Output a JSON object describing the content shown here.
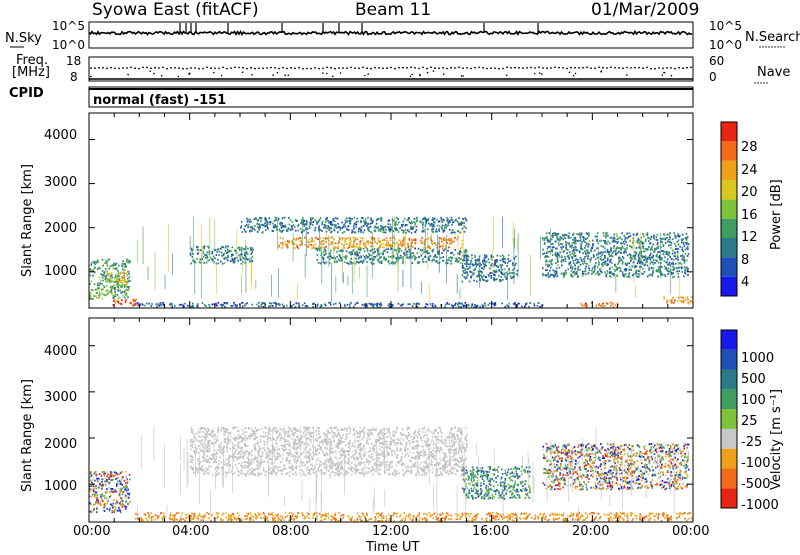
{
  "header": {
    "station": "Syowa East (fitACF)",
    "beam": "Beam 11",
    "date": "01/Mar/2009"
  },
  "top_panels": {
    "nsky_label": "N.Sky",
    "nsky_ticks": [
      "10^5",
      "10^0"
    ],
    "nsearch_label": "N.Search",
    "nsearch_ticks": [
      "10^5",
      "10^0"
    ],
    "freq_label": "Freq.",
    "freq_unit": "[MHz]",
    "freq_ticks": [
      "18",
      "8"
    ],
    "nave_label": "Nave",
    "nave_ticks": [
      "60",
      "0"
    ],
    "cpid_label": "CPID",
    "cpid_value": "normal (fast) -151"
  },
  "chart_data": [
    {
      "type": "heatmap",
      "name": "power",
      "ylabel": "Slant Range [km]",
      "xlabel": "Time UT",
      "x_ticks": [
        "00:00",
        "04:00",
        "08:00",
        "12:00",
        "16:00",
        "20:00",
        "00:00"
      ],
      "xlim": [
        0,
        24
      ],
      "y_ticks": [
        1000,
        2000,
        3000,
        4000
      ],
      "ylim": [
        180,
        4600
      ],
      "colorbar": {
        "label": "Power [dB]",
        "ticks": [
          4,
          8,
          12,
          16,
          20,
          24,
          28
        ],
        "range": [
          0,
          30
        ],
        "colors": [
          "#1818e8",
          "#1f50b8",
          "#2a7a88",
          "#3e9e60",
          "#7fc23c",
          "#d8c81e",
          "#f0a018",
          "#f06a18",
          "#e82414"
        ]
      },
      "regions": [
        {
          "t0": 0.0,
          "t1": 1.6,
          "r0": 400,
          "r1": 1300,
          "val": 12
        },
        {
          "t0": 0.7,
          "t1": 1.5,
          "r0": 700,
          "r1": 1000,
          "val": 20
        },
        {
          "t0": 0.9,
          "t1": 1.9,
          "r0": 250,
          "r1": 400,
          "val": 27
        },
        {
          "t0": 4.0,
          "t1": 6.5,
          "r0": 1200,
          "r1": 1600,
          "val": 9
        },
        {
          "t0": 6.0,
          "t1": 15.0,
          "r0": 1900,
          "r1": 2250,
          "val": 8
        },
        {
          "t0": 7.5,
          "t1": 14.8,
          "r0": 1550,
          "r1": 1800,
          "val": 22
        },
        {
          "t0": 9.0,
          "t1": 15.0,
          "r0": 1200,
          "r1": 1550,
          "val": 9
        },
        {
          "t0": 14.8,
          "t1": 17.0,
          "r0": 800,
          "r1": 1400,
          "val": 8
        },
        {
          "t0": 18.0,
          "t1": 23.8,
          "r0": 900,
          "r1": 1900,
          "val": 9
        },
        {
          "t0": 19.5,
          "t1": 21.0,
          "r0": 220,
          "r1": 330,
          "val": 24
        },
        {
          "t0": 22.8,
          "t1": 24.0,
          "r0": 300,
          "r1": 450,
          "val": 22
        },
        {
          "t0": 1.8,
          "t1": 18.0,
          "r0": 220,
          "r1": 320,
          "val": 6
        }
      ]
    },
    {
      "type": "heatmap",
      "name": "velocity",
      "ylabel": "Slant Range [km]",
      "xlabel": "Time UT",
      "x_ticks": [
        "00:00",
        "04:00",
        "08:00",
        "12:00",
        "16:00",
        "20:00",
        "00:00"
      ],
      "xlim": [
        0,
        24
      ],
      "y_ticks": [
        1000,
        2000,
        3000,
        4000
      ],
      "ylim": [
        180,
        4600
      ],
      "colorbar": {
        "label": "Velocity [m s⁻¹]",
        "ticks": [
          "1000",
          "500",
          "100",
          "25",
          "-25",
          "-100",
          "-500",
          "-1000"
        ],
        "colors": [
          "#1818e8",
          "#1f50b8",
          "#2a7a88",
          "#3e9e60",
          "#7fc23c",
          "#c8c8c8",
          "#f0a018",
          "#f06a18",
          "#e82414"
        ]
      },
      "regions": [
        {
          "t0": 0.0,
          "t1": 1.6,
          "r0": 400,
          "r1": 1300,
          "val": "mixed"
        },
        {
          "t0": 4.0,
          "t1": 15.0,
          "r0": 1200,
          "r1": 2250,
          "val": "gray"
        },
        {
          "t0": 14.8,
          "t1": 17.5,
          "r0": 700,
          "r1": 1400,
          "val": "green"
        },
        {
          "t0": 18.0,
          "t1": 23.8,
          "r0": 900,
          "r1": 1900,
          "val": "mixed"
        },
        {
          "t0": 1.8,
          "t1": 24.0,
          "r0": 220,
          "r1": 400,
          "val": "orange"
        }
      ]
    }
  ]
}
